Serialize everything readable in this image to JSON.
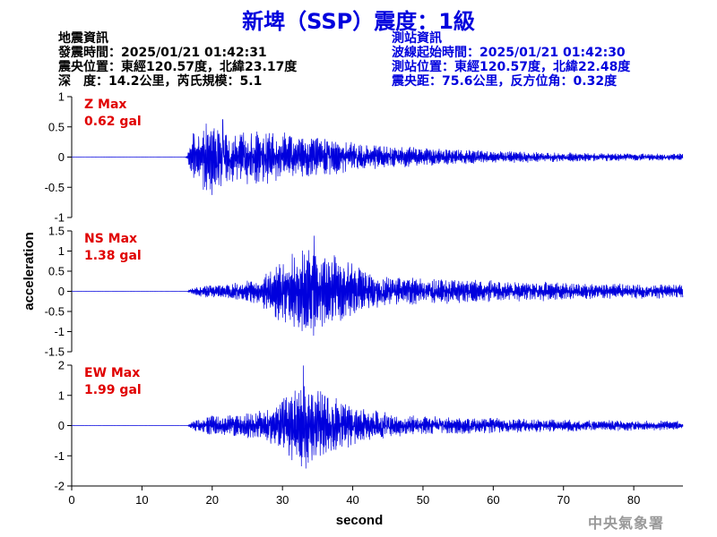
{
  "header": {
    "title": "新埤（SSP）震度：1級"
  },
  "event_info": {
    "heading": "地震資訊",
    "lines": [
      "發震時間：2025/01/21 01:42:31",
      "震央位置：東經120.57度，北緯23.17度",
      "深　度：14.2公里，芮氏規模：5.1"
    ]
  },
  "station_info": {
    "heading": "測站資訊",
    "lines": [
      "波線起始時間：2025/01/21 01:42:30",
      "測站位置：東經120.57度，北緯22.48度",
      "震央距：75.6公里，反方位角：0.32度"
    ]
  },
  "footer": {
    "agency": "中央氣象署"
  },
  "colors": {
    "trace": "#0000dd",
    "legend": "#e00000",
    "title": "#0000dd"
  },
  "chart_data": {
    "type": "line",
    "xlabel": "second",
    "ylabel": "acceleration",
    "xlim": [
      0,
      87
    ],
    "xticks": [
      0,
      10,
      20,
      30,
      40,
      50,
      60,
      70,
      80
    ],
    "grid": false,
    "shared_x_axis": true,
    "series": [
      {
        "name": "Z",
        "legend_label": "Z Max",
        "max_label": "0.62 gal",
        "peak": 0.62,
        "ylim": [
          -1,
          1
        ],
        "yticks": [
          -1,
          -0.5,
          0,
          0.5,
          1
        ],
        "onset_s": 16.5,
        "envelope": [
          [
            0,
            0.004
          ],
          [
            16,
            0.004
          ],
          [
            16.5,
            0.1
          ],
          [
            17,
            0.35
          ],
          [
            18,
            0.5
          ],
          [
            19,
            0.55
          ],
          [
            20,
            0.55
          ],
          [
            21,
            0.5
          ],
          [
            22,
            0.5
          ],
          [
            23,
            0.48
          ],
          [
            25,
            0.42
          ],
          [
            27,
            0.4
          ],
          [
            30,
            0.38
          ],
          [
            33,
            0.32
          ],
          [
            36,
            0.28
          ],
          [
            40,
            0.22
          ],
          [
            45,
            0.17
          ],
          [
            50,
            0.14
          ],
          [
            55,
            0.11
          ],
          [
            60,
            0.09
          ],
          [
            65,
            0.08
          ],
          [
            70,
            0.07
          ],
          [
            80,
            0.055
          ],
          [
            87,
            0.05
          ]
        ],
        "peak_at_s": 21.5
      },
      {
        "name": "NS",
        "legend_label": "NS Max",
        "max_label": "1.38 gal",
        "peak": 1.38,
        "ylim": [
          -1.5,
          1.5
        ],
        "yticks": [
          -1.5,
          -1,
          -0.5,
          0,
          0.5,
          1,
          1.5
        ],
        "onset_s": 16.5,
        "envelope": [
          [
            0,
            0.005
          ],
          [
            16.5,
            0.005
          ],
          [
            17,
            0.06
          ],
          [
            18,
            0.12
          ],
          [
            20,
            0.16
          ],
          [
            22,
            0.18
          ],
          [
            24,
            0.2
          ],
          [
            26,
            0.28
          ],
          [
            28,
            0.5
          ],
          [
            30,
            0.7
          ],
          [
            32,
            0.9
          ],
          [
            34,
            1.0
          ],
          [
            36,
            0.9
          ],
          [
            38,
            0.75
          ],
          [
            40,
            0.6
          ],
          [
            42,
            0.45
          ],
          [
            45,
            0.35
          ],
          [
            50,
            0.3
          ],
          [
            55,
            0.27
          ],
          [
            60,
            0.24
          ],
          [
            65,
            0.22
          ],
          [
            70,
            0.2
          ],
          [
            75,
            0.18
          ],
          [
            80,
            0.17
          ],
          [
            87,
            0.15
          ]
        ],
        "peak_at_s": 34.5
      },
      {
        "name": "EW",
        "legend_label": "EW Max",
        "max_label": "1.99 gal",
        "peak": 1.99,
        "ylim": [
          -2,
          2
        ],
        "yticks": [
          -2,
          -1,
          0,
          1,
          2
        ],
        "onset_s": 16.5,
        "envelope": [
          [
            0,
            0.005
          ],
          [
            16.5,
            0.005
          ],
          [
            17,
            0.1
          ],
          [
            18,
            0.2
          ],
          [
            20,
            0.3
          ],
          [
            22,
            0.35
          ],
          [
            24,
            0.35
          ],
          [
            26,
            0.4
          ],
          [
            28,
            0.55
          ],
          [
            30,
            0.8
          ],
          [
            32,
            1.1
          ],
          [
            33,
            1.3
          ],
          [
            35,
            1.1
          ],
          [
            38,
            0.8
          ],
          [
            40,
            0.6
          ],
          [
            43,
            0.45
          ],
          [
            46,
            0.35
          ],
          [
            50,
            0.28
          ],
          [
            55,
            0.25
          ],
          [
            60,
            0.23
          ],
          [
            65,
            0.2
          ],
          [
            70,
            0.18
          ],
          [
            75,
            0.16
          ],
          [
            80,
            0.15
          ],
          [
            87,
            0.14
          ]
        ],
        "peak_at_s": 33
      }
    ]
  }
}
